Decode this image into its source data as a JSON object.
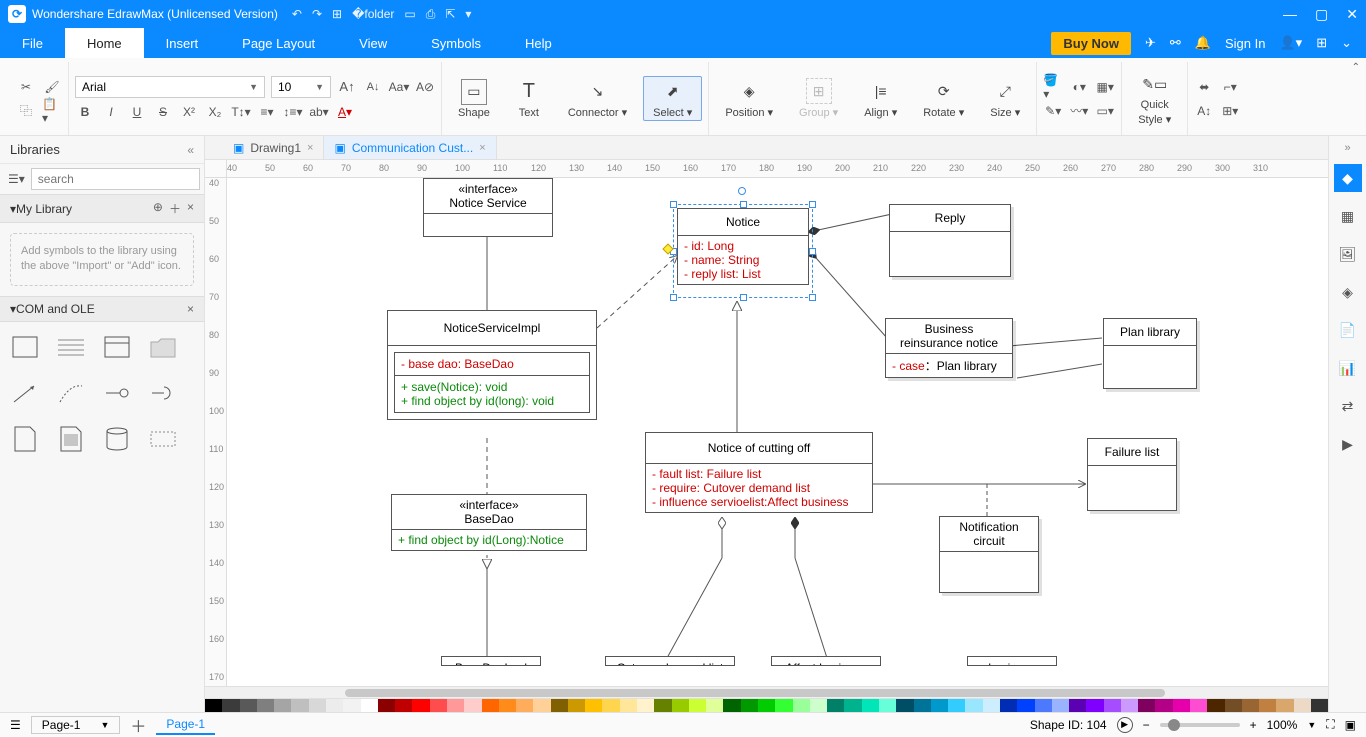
{
  "app": {
    "title": "Wondershare EdrawMax (Unlicensed Version)"
  },
  "menubar": {
    "tabs": [
      "File",
      "Home",
      "Insert",
      "Page Layout",
      "View",
      "Symbols",
      "Help"
    ],
    "active": 1,
    "buy": "Buy Now",
    "signin": "Sign In"
  },
  "ribbon": {
    "font_name": "Arial",
    "font_size": "10",
    "groups": {
      "shape": "Shape",
      "text": "Text",
      "connector": "Connector",
      "select": "Select",
      "position": "Position",
      "group": "Group",
      "align": "Align",
      "rotate": "Rotate",
      "size": "Size",
      "quickstyle1": "Quick",
      "quickstyle2": "Style"
    }
  },
  "left": {
    "title": "Libraries",
    "search_placeholder": "search",
    "mylib": "My Library",
    "note": "Add symbols to the library using the above \"Import\" or \"Add\" icon.",
    "comole": "COM and OLE"
  },
  "doctabs": {
    "t1": "Drawing1",
    "t2": "Communication Cust..."
  },
  "rulerH": {
    "start": 40,
    "step": 10,
    "count": 28
  },
  "rulerV": {
    "start": 40,
    "step": 10,
    "count": 14
  },
  "classes": {
    "noticeservice": {
      "stereo": "«interface»",
      "name": "Notice Service"
    },
    "noticeimpl": {
      "name": "NoticeServiceImpl",
      "a1": "- base dao: BaseDao",
      "m1": "+ save(Notice): void",
      "m2": "+ find object by id(long): void"
    },
    "basedao": {
      "stereo": "«interface»",
      "name": "BaseDao",
      "m1": "+ find object by id(Long):Notice"
    },
    "notice": {
      "name": "Notice",
      "a1": "- id: Long",
      "a2": "- name: String",
      "a3": "- reply list: List"
    },
    "reply": {
      "name": "Reply"
    },
    "bizre": {
      "name1": "Business",
      "name2": "reinsurance notice",
      "a1_pre": "- case",
      "a1_post": "Plan library",
      "colon": "："
    },
    "planlib": {
      "name": "Plan library"
    },
    "cutoff": {
      "name": "Notice of cutting off",
      "a1": "- fault list: Failure list",
      "a2": "- require:  Cutover demand list",
      "a3": "- influence servioelist:Affect business"
    },
    "faillist": {
      "name": "Failure list"
    },
    "notifcircuit": {
      "name1": "Notification",
      "name2": "circuit"
    },
    "bottom": {
      "b1": "BaseDaoImpl",
      "b2": "Cutover demand list",
      "b3": "Affect business",
      "b4": "business"
    }
  },
  "status": {
    "pagecombo": "Page-1",
    "pagetab": "Page-1",
    "shapeid": "Shape ID: 104",
    "zoom": "100%"
  },
  "colors": {
    "brand": "#0b8aff",
    "attr_red": "#d00000",
    "attr_green": "#0a8a0a",
    "palette": [
      "#000000",
      "#3b3b3b",
      "#595959",
      "#7f7f7f",
      "#a5a5a5",
      "#bfbfbf",
      "#d8d8d8",
      "#ececec",
      "#f2f2f2",
      "#ffffff",
      "#8b0000",
      "#c00000",
      "#ff0000",
      "#ff4d4d",
      "#ff9999",
      "#ffcccc",
      "#ff6600",
      "#ff8c1a",
      "#ffad5c",
      "#ffd199",
      "#806000",
      "#cc9900",
      "#ffc000",
      "#ffd54d",
      "#ffe699",
      "#fff2cc",
      "#668000",
      "#99cc00",
      "#ccff33",
      "#e0ff99",
      "#006400",
      "#009900",
      "#00cc00",
      "#33ff33",
      "#99ff99",
      "#ccffcc",
      "#008066",
      "#00b38f",
      "#00e6b8",
      "#66ffd9",
      "#004d66",
      "#007399",
      "#0099cc",
      "#33ccff",
      "#99e6ff",
      "#cceeff",
      "#002db3",
      "#0040ff",
      "#4d79ff",
      "#99b3ff",
      "#5b00b3",
      "#7f00ff",
      "#a64dff",
      "#cc99ff",
      "#800060",
      "#b30086",
      "#e600ac",
      "#ff4dd2",
      "#4d2600",
      "#734d26",
      "#996633",
      "#bf8040",
      "#d9a66c",
      "#ecd9c6",
      "#333333"
    ]
  }
}
